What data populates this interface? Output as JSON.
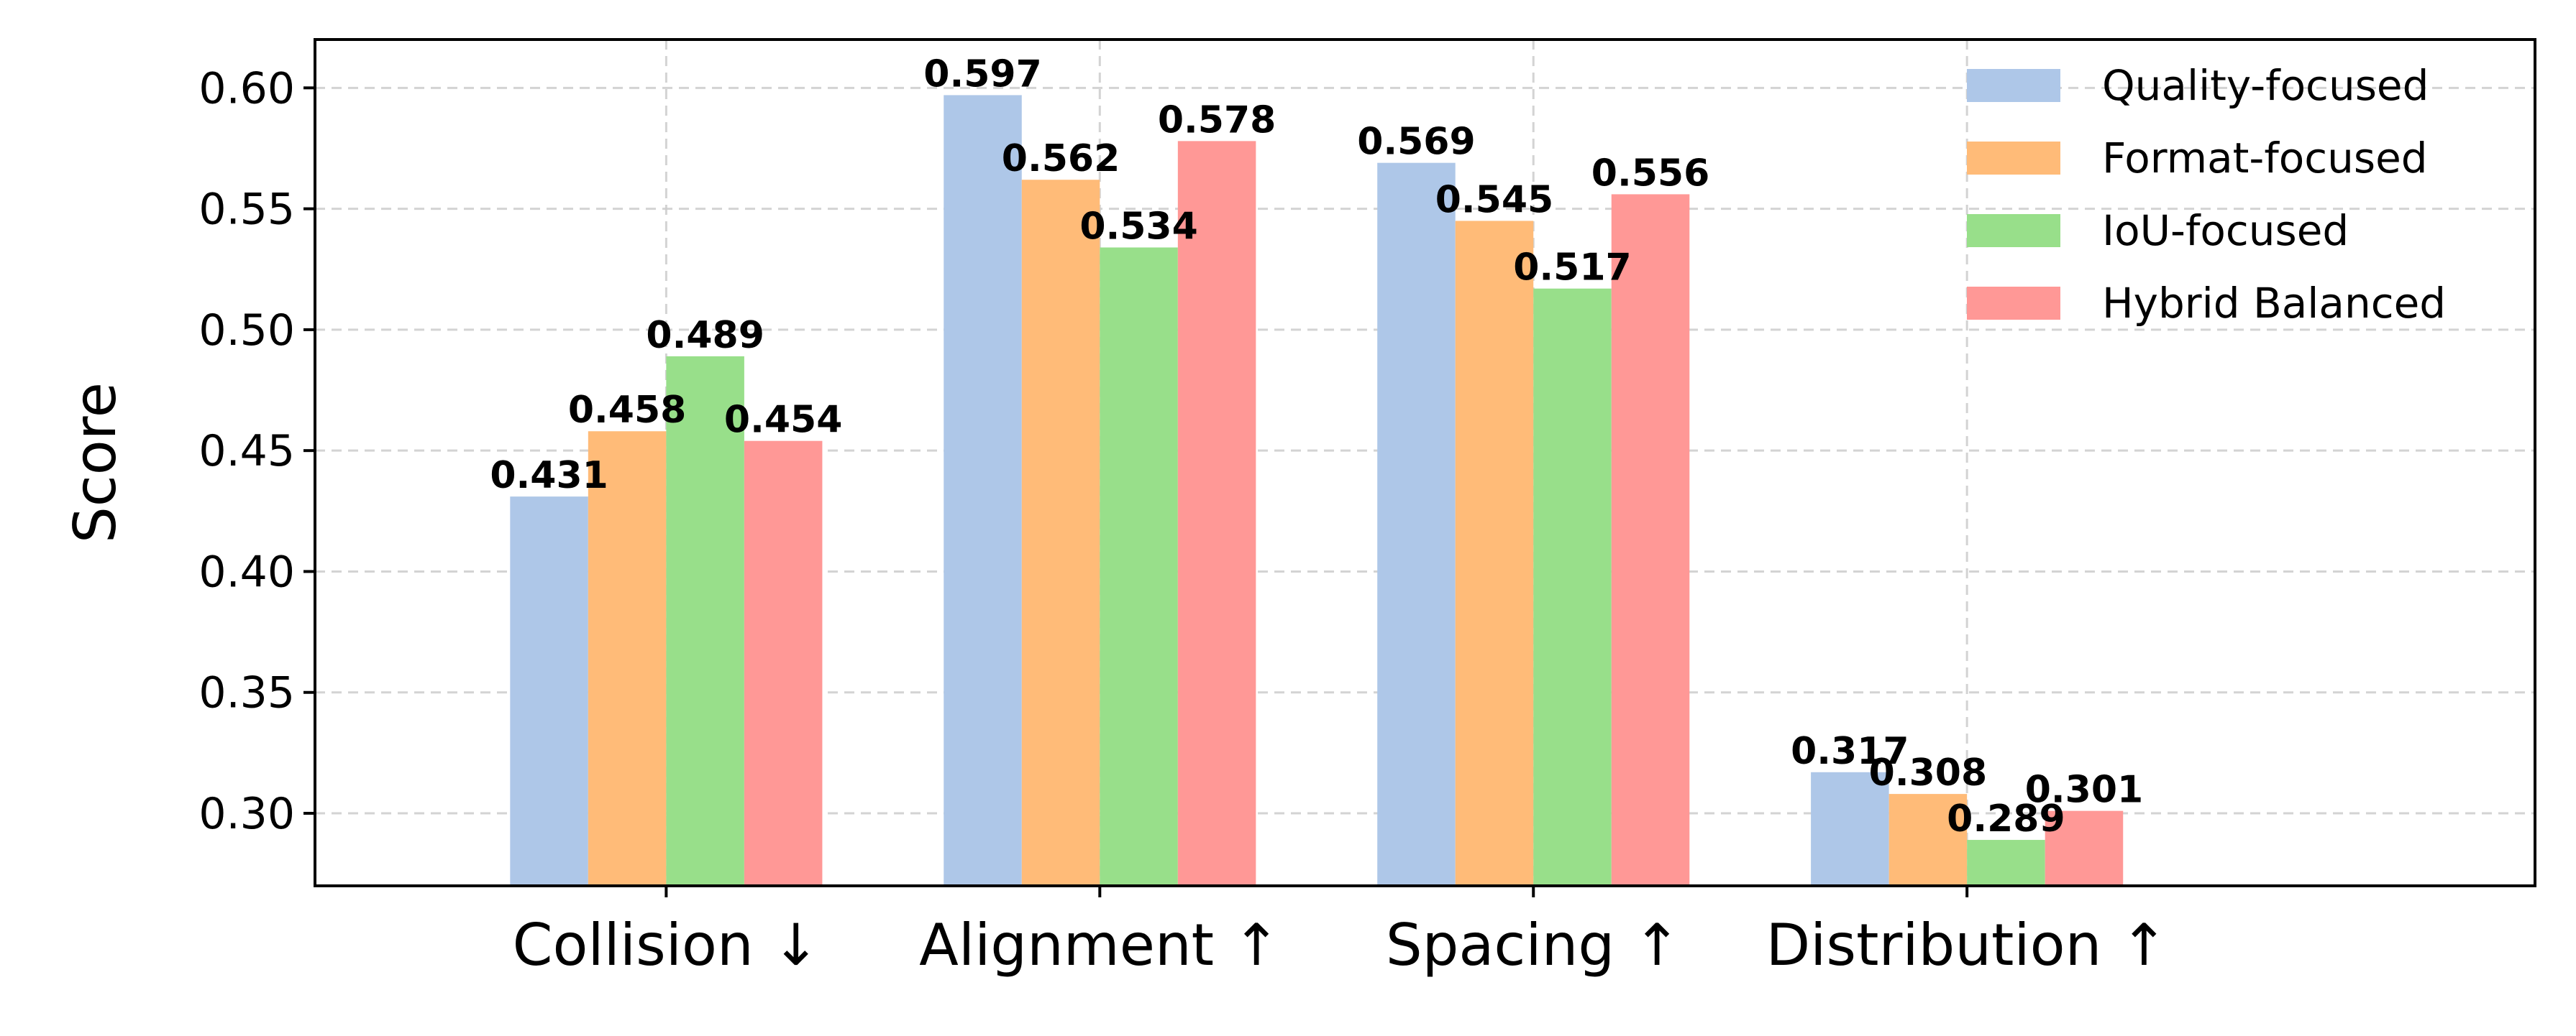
{
  "chart_data": {
    "type": "bar",
    "title": "",
    "xlabel": "",
    "ylabel": "Score",
    "categories": [
      "Collision ↓",
      "Alignment ↑",
      "Spacing ↑",
      "Distribution ↑"
    ],
    "series": [
      {
        "name": "Quality-focused",
        "color": "#aec7e8",
        "values": [
          0.431,
          0.597,
          0.569,
          0.317
        ]
      },
      {
        "name": "Format-focused",
        "color": "#ffbb78",
        "values": [
          0.458,
          0.562,
          0.545,
          0.308
        ]
      },
      {
        "name": "IoU-focused",
        "color": "#98df8a",
        "values": [
          0.489,
          0.534,
          0.517,
          0.289
        ]
      },
      {
        "name": "Hybrid Balanced",
        "color": "#ff9896",
        "values": [
          0.454,
          0.578,
          0.556,
          0.301
        ]
      }
    ],
    "value_labels": [
      [
        "0.431",
        "0.597",
        "0.569",
        "0.317"
      ],
      [
        "0.458",
        "0.562",
        "0.545",
        "0.308"
      ],
      [
        "0.489",
        "0.534",
        "0.517",
        "0.289"
      ],
      [
        "0.454",
        "0.578",
        "0.556",
        "0.301"
      ]
    ],
    "ylim": [
      0.27,
      0.62
    ],
    "yticks": [
      0.3,
      0.35,
      0.4,
      0.45,
      0.5,
      0.55,
      0.6
    ],
    "ytick_labels": [
      "0.30",
      "0.35",
      "0.40",
      "0.45",
      "0.50",
      "0.55",
      "0.60"
    ],
    "grid": true,
    "legend_position": "top-right"
  }
}
